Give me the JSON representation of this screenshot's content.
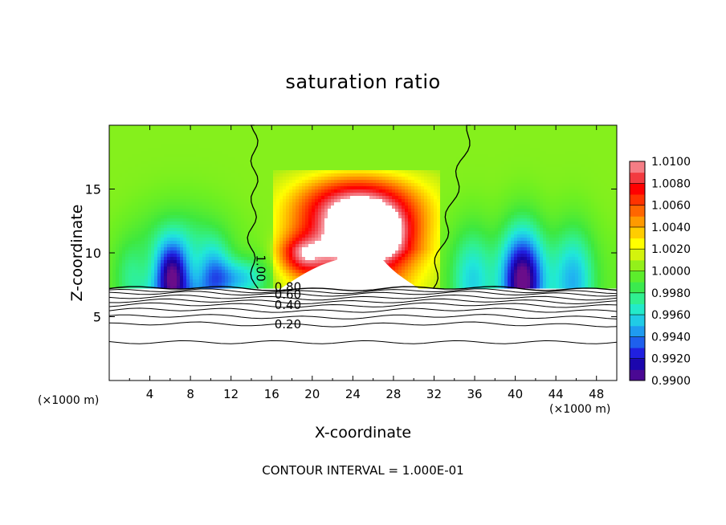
{
  "chart_data": {
    "type": "heatmap",
    "title": "saturation ratio",
    "xlabel": "X-coordinate",
    "ylabel": "Z-coordinate",
    "x_unit_left": "(×1000 m)",
    "x_unit_right": "(×1000 m)",
    "xlim": [
      0,
      50
    ],
    "ylim": [
      0,
      20
    ],
    "x_ticks": [
      "4",
      "8",
      "12",
      "16",
      "20",
      "24",
      "28",
      "32",
      "36",
      "40",
      "44",
      "48"
    ],
    "y_ticks": [
      "5",
      "10",
      "15"
    ],
    "contour_interval_text": "CONTOUR INTERVAL = 1.000E-01",
    "contour_labels": [
      "1.00",
      "0.80",
      "0.60",
      "0.40",
      "0.20"
    ],
    "colorbar": {
      "ticks": [
        "1.0100",
        "1.0080",
        "1.0060",
        "1.0040",
        "1.0020",
        "1.0000",
        "0.9980",
        "0.9960",
        "0.9940",
        "0.9920",
        "0.9900"
      ],
      "min": 0.99,
      "max": 1.01,
      "colors": [
        "#6a0d8a",
        "#1a00a0",
        "#2020e0",
        "#1e70f0",
        "#20b8f0",
        "#20e8d8",
        "#30f090",
        "#3ee83e",
        "#70f020",
        "#c8f010",
        "#ffff00",
        "#ffc000",
        "#ff8000",
        "#ff4000",
        "#ff0000",
        "#f04850",
        "#f8a0a8"
      ]
    }
  }
}
